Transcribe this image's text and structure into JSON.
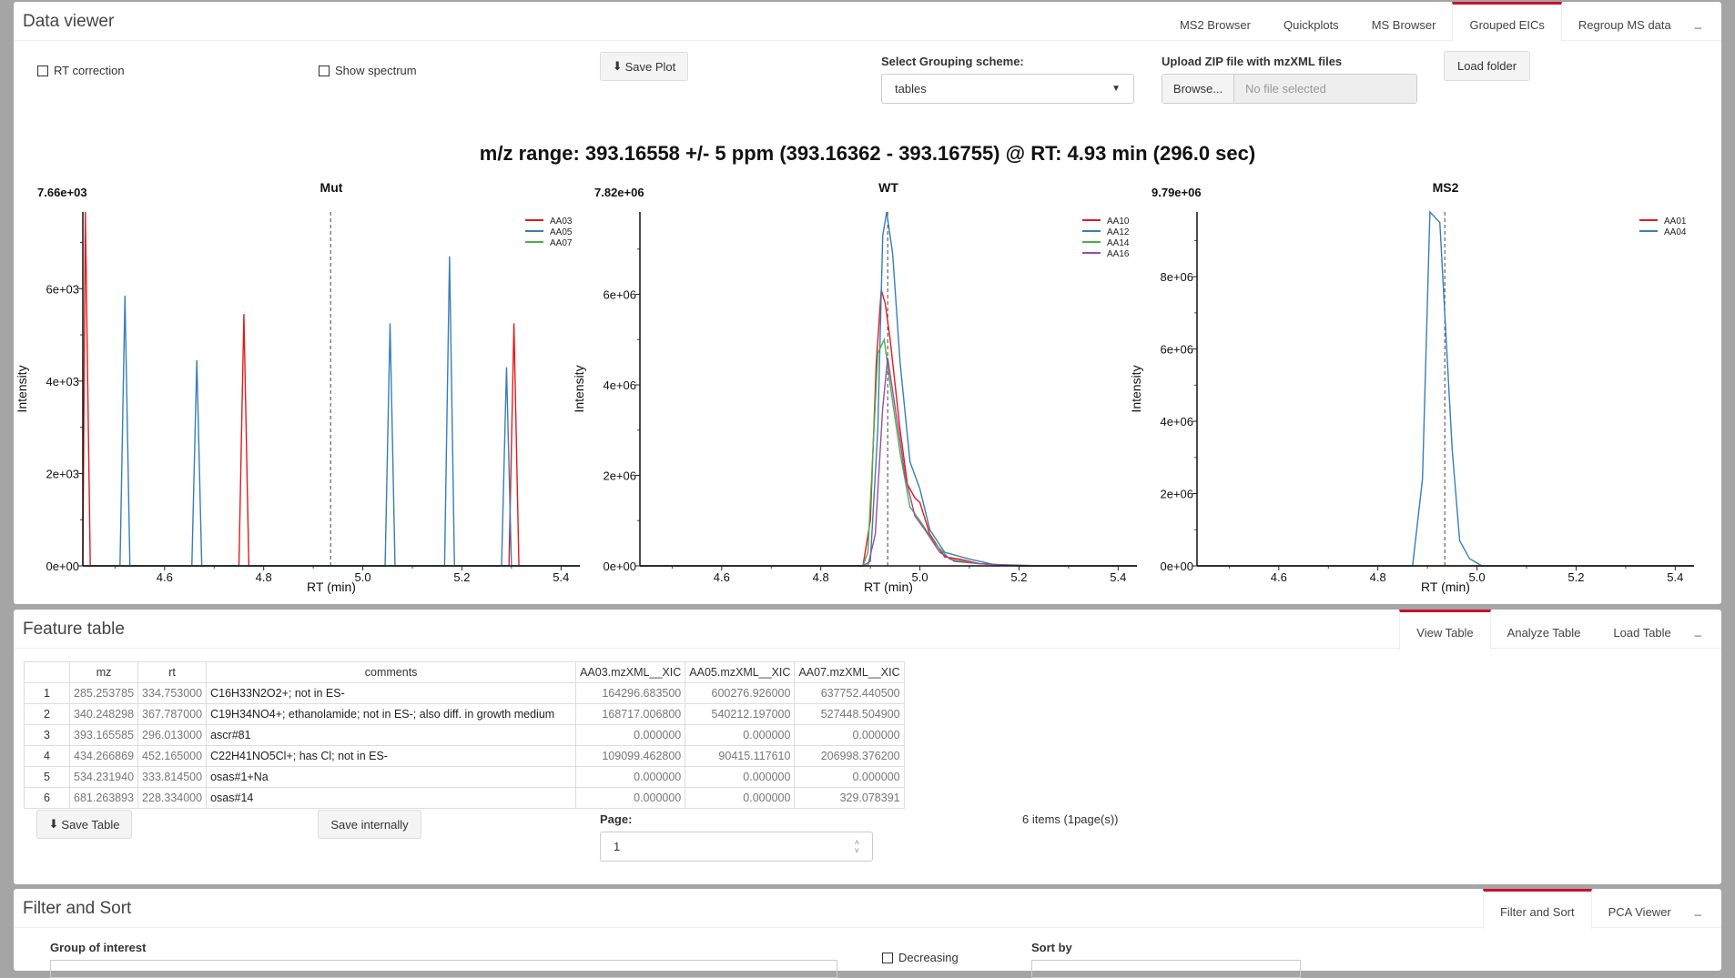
{
  "data_viewer": {
    "title": "Data viewer",
    "tabs": [
      "MS2 Browser",
      "Quickplots",
      "MS Browser",
      "Grouped EICs",
      "Regroup MS data"
    ],
    "active_tab": "Grouped EICs",
    "minimize": "_",
    "rt_correction": "RT correction",
    "show_spectrum": "Show spectrum",
    "save_plot": "Save Plot",
    "grouping_label": "Select Grouping scheme:",
    "grouping_value": "tables",
    "upload_label": "Upload ZIP file with mzXML files",
    "browse": "Browse...",
    "file_placeholder": "No file selected",
    "load_folder": "Load folder",
    "mz_title": "m/z range: 393.16558 +/- 5 ppm (393.16362 - 393.16755) @ RT: 4.93 min (296.0 sec)"
  },
  "chart_data": [
    {
      "type": "line",
      "title": "Mut",
      "max_label": "7.66e+03",
      "xlabel": "RT (min)",
      "ylabel": "Intensity",
      "xlim": [
        4.435,
        5.438
      ],
      "ylim": [
        0,
        7660
      ],
      "yticks": [
        0,
        2000,
        4000,
        6000
      ],
      "ytick_labels": [
        "0e+00",
        "2e+03",
        "4e+03",
        "6e+03"
      ],
      "xticks": [
        4.6,
        4.8,
        5.0,
        5.2,
        5.4
      ],
      "xtick_labels": [
        "4.6",
        "4.8",
        "5.0",
        "5.2",
        "5.4"
      ],
      "rt_marker": 4.935,
      "legend": "top-right",
      "series": [
        {
          "name": "AA03",
          "color": "#e41a1c",
          "points": [
            [
              4.435,
              0
            ],
            [
              4.44,
              7660
            ],
            [
              4.45,
              0
            ],
            [
              4.75,
              0
            ],
            [
              4.76,
              5450
            ],
            [
              4.77,
              0
            ],
            [
              5.295,
              0
            ],
            [
              5.305,
              5250
            ],
            [
              5.315,
              0
            ],
            [
              5.438,
              0
            ]
          ]
        },
        {
          "name": "AA05",
          "color": "#377eb8",
          "points": [
            [
              4.435,
              0
            ],
            [
              4.51,
              0
            ],
            [
              4.52,
              5850
            ],
            [
              4.53,
              0
            ],
            [
              4.655,
              0
            ],
            [
              4.665,
              4450
            ],
            [
              4.675,
              0
            ],
            [
              5.045,
              0
            ],
            [
              5.055,
              5250
            ],
            [
              5.065,
              0
            ],
            [
              5.165,
              0
            ],
            [
              5.175,
              6700
            ],
            [
              5.185,
              0
            ],
            [
              5.28,
              0
            ],
            [
              5.29,
              4300
            ],
            [
              5.3,
              0
            ],
            [
              5.438,
              0
            ]
          ]
        },
        {
          "name": "AA07",
          "color": "#4daf4a",
          "points": [
            [
              4.435,
              0
            ],
            [
              5.438,
              0
            ]
          ]
        }
      ]
    },
    {
      "type": "line",
      "title": "WT",
      "max_label": "7.82e+06",
      "xlabel": "RT (min)",
      "ylabel": "Intensity",
      "xlim": [
        4.435,
        5.438
      ],
      "ylim": [
        0,
        7820000
      ],
      "yticks": [
        0,
        2000000,
        4000000,
        6000000
      ],
      "ytick_labels": [
        "0e+00",
        "2e+06",
        "4e+06",
        "6e+06"
      ],
      "xticks": [
        4.6,
        4.8,
        5.0,
        5.2,
        5.4
      ],
      "xtick_labels": [
        "4.6",
        "4.8",
        "5.0",
        "5.2",
        "5.4"
      ],
      "rt_marker": 4.935,
      "legend": "top-right",
      "series": [
        {
          "name": "AA10",
          "color": "#e41a1c",
          "points": [
            [
              4.435,
              0
            ],
            [
              4.885,
              0
            ],
            [
              4.9,
              1000000
            ],
            [
              4.912,
              4500000
            ],
            [
              4.922,
              6100000
            ],
            [
              4.93,
              5800000
            ],
            [
              4.94,
              5000000
            ],
            [
              4.96,
              3000000
            ],
            [
              4.975,
              1800000
            ],
            [
              4.99,
              1500000
            ],
            [
              5.0,
              1400000
            ],
            [
              5.02,
              700000
            ],
            [
              5.05,
              200000
            ],
            [
              5.08,
              150000
            ],
            [
              5.12,
              50000
            ],
            [
              5.2,
              0
            ],
            [
              5.438,
              0
            ]
          ]
        },
        {
          "name": "AA12",
          "color": "#377eb8",
          "points": [
            [
              4.435,
              0
            ],
            [
              4.885,
              0
            ],
            [
              4.9,
              100000
            ],
            [
              4.915,
              3000000
            ],
            [
              4.925,
              7300000
            ],
            [
              4.933,
              7820000
            ],
            [
              4.945,
              6900000
            ],
            [
              4.96,
              4500000
            ],
            [
              4.98,
              2300000
            ],
            [
              5.0,
              1700000
            ],
            [
              5.02,
              800000
            ],
            [
              5.05,
              300000
            ],
            [
              5.1,
              150000
            ],
            [
              5.15,
              30000
            ],
            [
              5.25,
              0
            ],
            [
              5.438,
              0
            ]
          ]
        },
        {
          "name": "AA14",
          "color": "#4daf4a",
          "points": [
            [
              4.435,
              0
            ],
            [
              4.885,
              0
            ],
            [
              4.895,
              300000
            ],
            [
              4.915,
              4700000
            ],
            [
              4.928,
              5000000
            ],
            [
              4.94,
              4000000
            ],
            [
              4.96,
              2500000
            ],
            [
              4.98,
              1300000
            ],
            [
              5.0,
              1000000
            ],
            [
              5.03,
              500000
            ],
            [
              5.06,
              150000
            ],
            [
              5.12,
              50000
            ],
            [
              5.2,
              0
            ],
            [
              5.438,
              0
            ]
          ]
        },
        {
          "name": "AA16",
          "color": "#984ea3",
          "points": [
            [
              4.435,
              0
            ],
            [
              4.895,
              0
            ],
            [
              4.91,
              700000
            ],
            [
              4.925,
              3500000
            ],
            [
              4.935,
              4600000
            ],
            [
              4.95,
              3500000
            ],
            [
              4.97,
              2000000
            ],
            [
              4.99,
              1100000
            ],
            [
              5.01,
              800000
            ],
            [
              5.04,
              300000
            ],
            [
              5.07,
              100000
            ],
            [
              5.12,
              50000
            ],
            [
              5.2,
              0
            ],
            [
              5.438,
              0
            ]
          ]
        }
      ]
    },
    {
      "type": "line",
      "title": "MS2",
      "max_label": "9.79e+06",
      "xlabel": "RT (min)",
      "ylabel": "Intensity",
      "xlim": [
        4.435,
        5.438
      ],
      "ylim": [
        0,
        9790000
      ],
      "yticks": [
        0,
        2000000,
        4000000,
        6000000,
        8000000
      ],
      "ytick_labels": [
        "0e+00",
        "2e+06",
        "4e+06",
        "6e+06",
        "8e+06"
      ],
      "xticks": [
        4.6,
        4.8,
        5.0,
        5.2,
        5.4
      ],
      "xtick_labels": [
        "4.6",
        "4.8",
        "5.0",
        "5.2",
        "5.4"
      ],
      "rt_marker": 4.935,
      "legend": "top-right",
      "series": [
        {
          "name": "AA01",
          "color": "#e41a1c",
          "points": [
            [
              4.435,
              0
            ],
            [
              5.438,
              0
            ]
          ]
        },
        {
          "name": "AA04",
          "color": "#377eb8",
          "points": [
            [
              4.435,
              0
            ],
            [
              4.87,
              0
            ],
            [
              4.89,
              2400000
            ],
            [
              4.905,
              9790000
            ],
            [
              4.925,
              9500000
            ],
            [
              4.95,
              3200000
            ],
            [
              4.965,
              700000
            ],
            [
              4.985,
              200000
            ],
            [
              5.01,
              0
            ],
            [
              5.438,
              0
            ]
          ]
        }
      ]
    }
  ],
  "feature_table": {
    "title": "Feature table",
    "tabs": [
      "View Table",
      "Analyze Table",
      "Load Table"
    ],
    "active_tab": "View Table",
    "minimize": "_",
    "columns": [
      "",
      "mz",
      "rt",
      "comments",
      "AA03.mzXML__XIC",
      "AA05.mzXML__XIC",
      "AA07.mzXML__XIC"
    ],
    "rows": [
      [
        "1",
        "285.253785",
        "334.753000",
        "C16H33N2O2+; not in ES-",
        "164296.683500",
        "600276.926000",
        "637752.440500"
      ],
      [
        "2",
        "340.248298",
        "367.787000",
        "C19H34NO4+; ethanolamide; not in ES-; also diff. in growth medium",
        "168717.006800",
        "540212.197000",
        "527448.504900"
      ],
      [
        "3",
        "393.165585",
        "296.013000",
        "ascr#81",
        "0.000000",
        "0.000000",
        "0.000000"
      ],
      [
        "4",
        "434.266869",
        "452.165000",
        "C22H41NO5Cl+; has Cl; not in ES-",
        "109099.462800",
        "90415.117610",
        "206998.376200"
      ],
      [
        "5",
        "534.231940",
        "333.814500",
        "osas#1+Na",
        "0.000000",
        "0.000000",
        "0.000000"
      ],
      [
        "6",
        "681.263893",
        "228.334000",
        "osas#14",
        "0.000000",
        "0.000000",
        "329.078391"
      ]
    ],
    "save_table": "Save Table",
    "save_internally": "Save internally",
    "page_label": "Page:",
    "page_value": "1",
    "items_text": "6 items (1page(s))"
  },
  "filter_sort": {
    "title": "Filter and Sort",
    "tabs": [
      "Filter and Sort",
      "PCA Viewer"
    ],
    "active_tab": "Filter and Sort",
    "minimize": "_",
    "group_label": "Group of interest",
    "decreasing": "Decreasing",
    "sort_label": "Sort by"
  }
}
